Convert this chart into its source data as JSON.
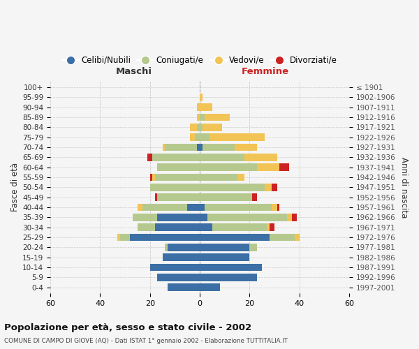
{
  "age_groups": [
    "0-4",
    "5-9",
    "10-14",
    "15-19",
    "20-24",
    "25-29",
    "30-34",
    "35-39",
    "40-44",
    "45-49",
    "50-54",
    "55-59",
    "60-64",
    "65-69",
    "70-74",
    "75-79",
    "80-84",
    "85-89",
    "90-94",
    "95-99",
    "100+"
  ],
  "birth_years": [
    "1997-2001",
    "1992-1996",
    "1987-1991",
    "1982-1986",
    "1977-1981",
    "1972-1976",
    "1967-1971",
    "1962-1966",
    "1957-1961",
    "1952-1956",
    "1947-1951",
    "1942-1946",
    "1937-1941",
    "1932-1936",
    "1927-1931",
    "1922-1926",
    "1917-1921",
    "1912-1916",
    "1907-1911",
    "1902-1906",
    "≤ 1901"
  ],
  "males_celibe": [
    13,
    17,
    20,
    15,
    13,
    28,
    18,
    17,
    5,
    0,
    0,
    0,
    0,
    0,
    1,
    0,
    0,
    0,
    0,
    0,
    0
  ],
  "males_coniugato": [
    0,
    0,
    0,
    0,
    1,
    4,
    7,
    10,
    18,
    17,
    20,
    18,
    17,
    19,
    13,
    2,
    1,
    0,
    0,
    0,
    0
  ],
  "males_vedovo": [
    0,
    0,
    0,
    0,
    0,
    1,
    0,
    0,
    2,
    0,
    0,
    1,
    0,
    0,
    1,
    2,
    3,
    1,
    1,
    0,
    0
  ],
  "males_divorziato": [
    0,
    0,
    0,
    0,
    0,
    0,
    0,
    0,
    0,
    1,
    0,
    1,
    0,
    2,
    0,
    0,
    0,
    0,
    0,
    0,
    0
  ],
  "females_nubile": [
    8,
    23,
    25,
    20,
    20,
    28,
    5,
    3,
    2,
    0,
    0,
    0,
    0,
    0,
    1,
    0,
    0,
    0,
    0,
    0,
    0
  ],
  "females_coniugata": [
    0,
    0,
    0,
    0,
    3,
    10,
    22,
    32,
    27,
    21,
    26,
    15,
    23,
    18,
    13,
    4,
    1,
    2,
    0,
    0,
    0
  ],
  "females_vedova": [
    0,
    0,
    0,
    0,
    0,
    2,
    1,
    2,
    2,
    0,
    3,
    3,
    9,
    13,
    9,
    22,
    8,
    10,
    5,
    1,
    0
  ],
  "females_divorziata": [
    0,
    0,
    0,
    0,
    0,
    0,
    2,
    2,
    1,
    2,
    2,
    0,
    4,
    0,
    0,
    0,
    0,
    0,
    0,
    0,
    0
  ],
  "color_celibe": "#3c6fa5",
  "color_coniugato": "#b5c98e",
  "color_vedovo": "#f2c455",
  "color_divorziato": "#cc2222",
  "xlim": 60,
  "title": "Popolazione per età, sesso e stato civile - 2002",
  "subtitle": "COMUNE DI CAMPO DI GIOVE (AQ) - Dati ISTAT 1° gennaio 2002 - Elaborazione TUTTITALIA.IT",
  "ylabel_left": "Fasce di età",
  "ylabel_right": "Anni di nascita",
  "label_maschi": "Maschi",
  "label_femmine": "Femmine",
  "legend_labels": [
    "Celibi/Nubili",
    "Coniugati/e",
    "Vedovi/e",
    "Divorziati/e"
  ],
  "bg_color": "#f5f5f5",
  "grid_color": "#cccccc"
}
